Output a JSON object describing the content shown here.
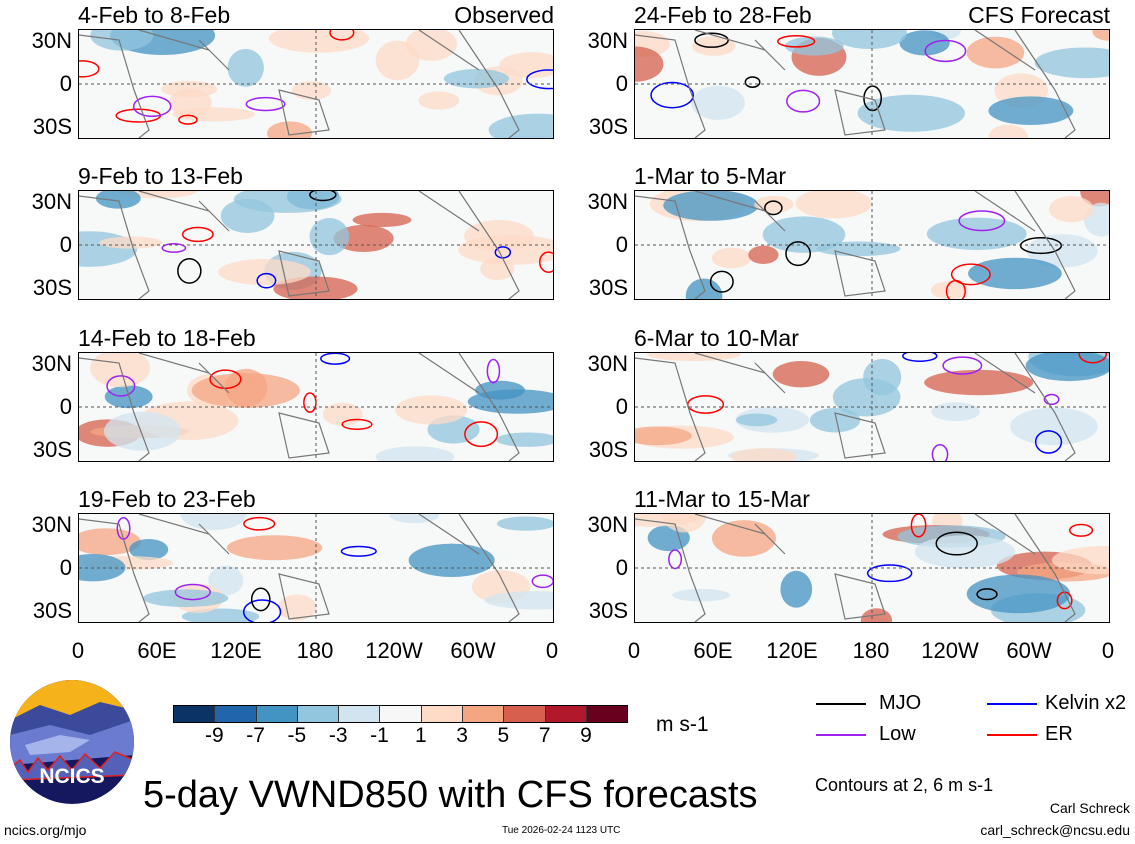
{
  "panels": {
    "left": [
      {
        "title": "4-Feb to 8-Feb",
        "tag": "Observed"
      },
      {
        "title": "9-Feb to 13-Feb",
        "tag": ""
      },
      {
        "title": "14-Feb to 18-Feb",
        "tag": ""
      },
      {
        "title": "19-Feb to 23-Feb",
        "tag": ""
      }
    ],
    "right": [
      {
        "title": "24-Feb to 28-Feb",
        "tag": "CFS Forecast"
      },
      {
        "title": "1-Mar to 5-Mar",
        "tag": ""
      },
      {
        "title": "6-Mar to 10-Mar",
        "tag": ""
      },
      {
        "title": "11-Mar to 15-Mar",
        "tag": ""
      }
    ]
  },
  "y_ticks": [
    "30N",
    "0",
    "30S"
  ],
  "x_ticks": [
    "0",
    "60E",
    "120E",
    "180",
    "120W",
    "60W",
    "0"
  ],
  "colorbar": {
    "colors": [
      "#0b3364",
      "#2166ac",
      "#4393c3",
      "#92c5de",
      "#d1e5f0",
      "#f7f7f7",
      "#fddbc7",
      "#f4a582",
      "#d6604d",
      "#b2182b",
      "#67001f"
    ],
    "labels": [
      "-9",
      "-7",
      "-5",
      "-3",
      "-1",
      "1",
      "3",
      "5",
      "7",
      "9"
    ],
    "units": "m s-1"
  },
  "legend": [
    {
      "label": "MJO",
      "color": "#000000"
    },
    {
      "label": "Kelvin x2",
      "color": "#0000ff"
    },
    {
      "label": "Low",
      "color": "#a020f0"
    },
    {
      "label": "ER",
      "color": "#ff0000"
    }
  ],
  "contours_note": "Contours at 2, 6 m s-1",
  "title": "5-day VWND850 with CFS forecasts",
  "logo_text": "NCICS",
  "url": "ncics.org/mjo",
  "timestamp": "Tue 2026-02-24 1123 UTC",
  "author": "Carl Schreck",
  "email": "carl_schreck@ncsu.edu"
}
